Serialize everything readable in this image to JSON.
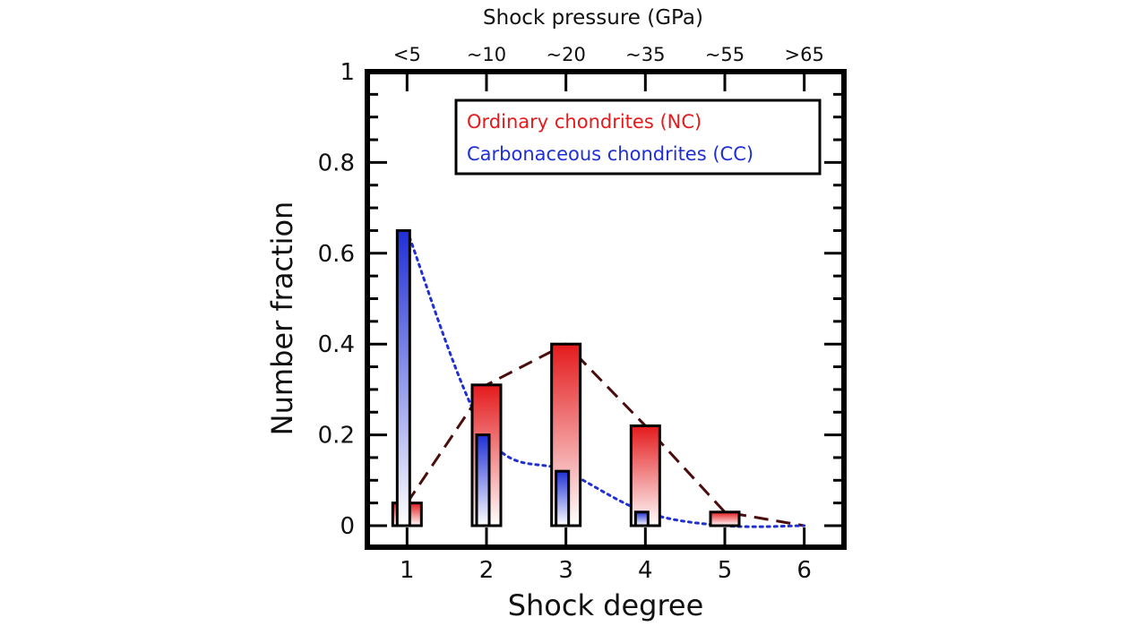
{
  "chart_data": {
    "type": "bar",
    "xlabel": "Shock degree",
    "ylabel": "Number fraction",
    "top_axis_title": "Shock pressure (GPa)",
    "x": [
      1,
      2,
      3,
      4,
      5,
      6
    ],
    "x_tick_labels": [
      "1",
      "2",
      "3",
      "4",
      "5",
      "6"
    ],
    "top_tick_labels": [
      "<5",
      "~10",
      "~20",
      "~35",
      "~55",
      ">65"
    ],
    "xlim": [
      0.5,
      6.5
    ],
    "ylim": [
      0,
      1
    ],
    "y_ticks": [
      0,
      0.2,
      0.4,
      0.6,
      0.8,
      1
    ],
    "y_tick_labels": [
      "0",
      "0.2",
      "0.4",
      "0.6",
      "0.8",
      "1"
    ],
    "grid": false,
    "legend_position": "top-right",
    "series": [
      {
        "name": "Ordinary chondrites (NC)",
        "color": "#e41a1c",
        "values": [
          0.05,
          0.31,
          0.4,
          0.22,
          0.03,
          0.0
        ],
        "trend_line": "dashed",
        "trend_color": "#4a0d0d"
      },
      {
        "name": "Carbonaceous chondrites (CC)",
        "color": "#1f2fd6",
        "values": [
          0.65,
          0.2,
          0.12,
          0.03,
          0.0,
          0.0
        ],
        "trend_line": "dotted",
        "trend_color": "#1f2fd6"
      }
    ]
  }
}
